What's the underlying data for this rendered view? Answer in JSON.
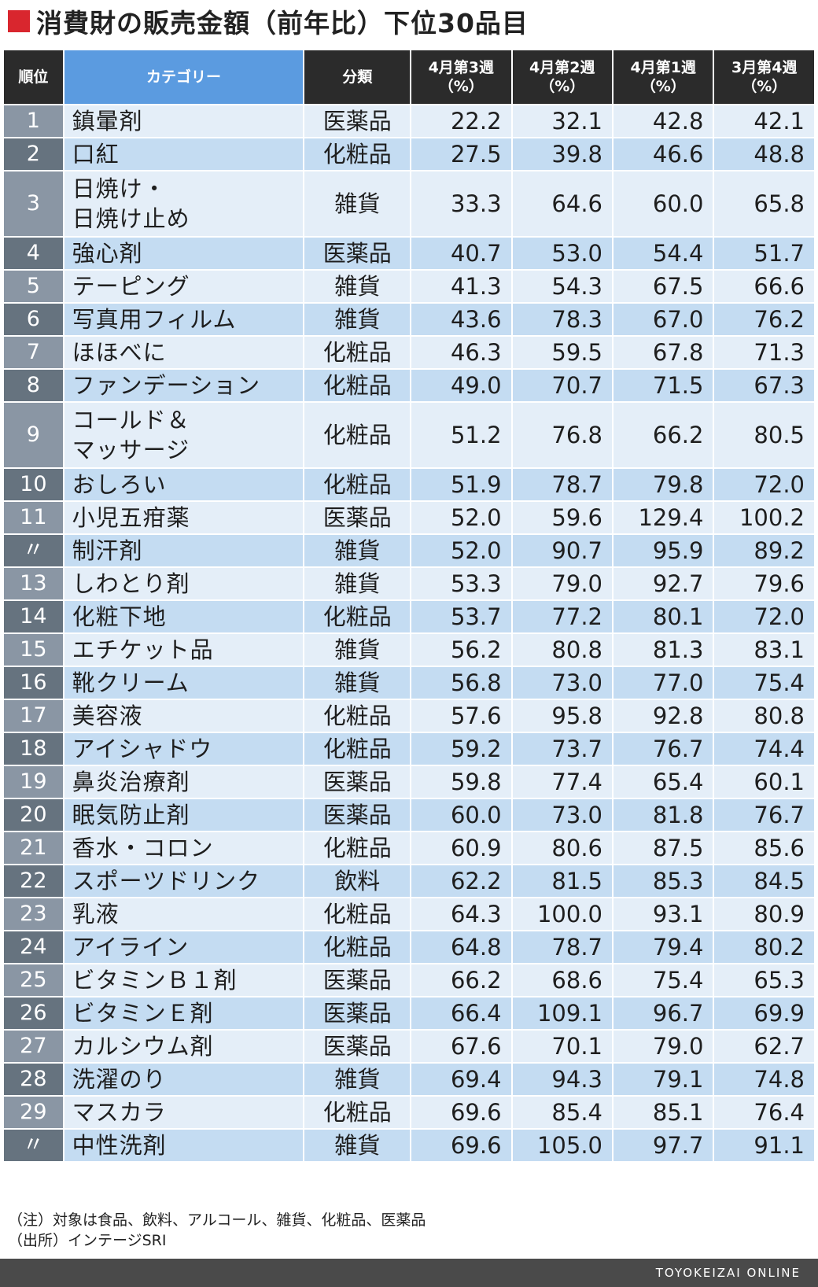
{
  "page": {
    "title": "消費財の販売金額（前年比）下位30品目",
    "notes": [
      "（注）対象は食品、飲料、アルコール、雑貨、化粧品、医薬品",
      "（出所）インテージSRI"
    ],
    "footer": "TOYOKEIZAI ONLINE",
    "accent_color": "#d9262e"
  },
  "chart_data": {
    "type": "table",
    "columns": [
      "順位",
      "カテゴリー",
      "分類",
      "4月第3週\n（%）",
      "4月第2週\n（%）",
      "4月第1週\n（%）",
      "3月第4週\n（%）"
    ],
    "rows": [
      {
        "rank": "1",
        "category": "鎮暈剤",
        "class": "医薬品",
        "values": [
          "22.2",
          "32.1",
          "42.8",
          "42.1"
        ]
      },
      {
        "rank": "2",
        "category": "口紅",
        "class": "化粧品",
        "values": [
          "27.5",
          "39.8",
          "46.6",
          "48.8"
        ]
      },
      {
        "rank": "3",
        "category": "日焼け・\n日焼け止め",
        "class": "雑貨",
        "values": [
          "33.3",
          "64.6",
          "60.0",
          "65.8"
        ]
      },
      {
        "rank": "4",
        "category": "強心剤",
        "class": "医薬品",
        "values": [
          "40.7",
          "53.0",
          "54.4",
          "51.7"
        ]
      },
      {
        "rank": "5",
        "category": "テーピング",
        "class": "雑貨",
        "values": [
          "41.3",
          "54.3",
          "67.5",
          "66.6"
        ]
      },
      {
        "rank": "6",
        "category": "写真用フィルム",
        "class": "雑貨",
        "values": [
          "43.6",
          "78.3",
          "67.0",
          "76.2"
        ]
      },
      {
        "rank": "7",
        "category": "ほほべに",
        "class": "化粧品",
        "values": [
          "46.3",
          "59.5",
          "67.8",
          "71.3"
        ]
      },
      {
        "rank": "8",
        "category": "ファンデーション",
        "class": "化粧品",
        "values": [
          "49.0",
          "70.7",
          "71.5",
          "67.3"
        ]
      },
      {
        "rank": "9",
        "category": "コールド＆\nマッサージ",
        "class": "化粧品",
        "values": [
          "51.2",
          "76.8",
          "66.2",
          "80.5"
        ]
      },
      {
        "rank": "10",
        "category": "おしろい",
        "class": "化粧品",
        "values": [
          "51.9",
          "78.7",
          "79.8",
          "72.0"
        ]
      },
      {
        "rank": "11",
        "category": "小児五疳薬",
        "class": "医薬品",
        "values": [
          "52.0",
          "59.6",
          "129.4",
          "100.2"
        ]
      },
      {
        "rank": "〃",
        "category": "制汗剤",
        "class": "雑貨",
        "values": [
          "52.0",
          "90.7",
          "95.9",
          "89.2"
        ]
      },
      {
        "rank": "13",
        "category": "しわとり剤",
        "class": "雑貨",
        "values": [
          "53.3",
          "79.0",
          "92.7",
          "79.6"
        ]
      },
      {
        "rank": "14",
        "category": "化粧下地",
        "class": "化粧品",
        "values": [
          "53.7",
          "77.2",
          "80.1",
          "72.0"
        ]
      },
      {
        "rank": "15",
        "category": "エチケット品",
        "class": "雑貨",
        "values": [
          "56.2",
          "80.8",
          "81.3",
          "83.1"
        ]
      },
      {
        "rank": "16",
        "category": "靴クリーム",
        "class": "雑貨",
        "values": [
          "56.8",
          "73.0",
          "77.0",
          "75.4"
        ]
      },
      {
        "rank": "17",
        "category": "美容液",
        "class": "化粧品",
        "values": [
          "57.6",
          "95.8",
          "92.8",
          "80.8"
        ]
      },
      {
        "rank": "18",
        "category": "アイシャドウ",
        "class": "化粧品",
        "values": [
          "59.2",
          "73.7",
          "76.7",
          "74.4"
        ]
      },
      {
        "rank": "19",
        "category": "鼻炎治療剤",
        "class": "医薬品",
        "values": [
          "59.8",
          "77.4",
          "65.4",
          "60.1"
        ]
      },
      {
        "rank": "20",
        "category": "眠気防止剤",
        "class": "医薬品",
        "values": [
          "60.0",
          "73.0",
          "81.8",
          "76.7"
        ]
      },
      {
        "rank": "21",
        "category": "香水・コロン",
        "class": "化粧品",
        "values": [
          "60.9",
          "80.6",
          "87.5",
          "85.6"
        ]
      },
      {
        "rank": "22",
        "category": "スポーツドリンク",
        "class": "飲料",
        "values": [
          "62.2",
          "81.5",
          "85.3",
          "84.5"
        ]
      },
      {
        "rank": "23",
        "category": "乳液",
        "class": "化粧品",
        "values": [
          "64.3",
          "100.0",
          "93.1",
          "80.9"
        ]
      },
      {
        "rank": "24",
        "category": "アイライン",
        "class": "化粧品",
        "values": [
          "64.8",
          "78.7",
          "79.4",
          "80.2"
        ]
      },
      {
        "rank": "25",
        "category": "ビタミンＢ１剤",
        "class": "医薬品",
        "values": [
          "66.2",
          "68.6",
          "75.4",
          "65.3"
        ]
      },
      {
        "rank": "26",
        "category": "ビタミンＥ剤",
        "class": "医薬品",
        "values": [
          "66.4",
          "109.1",
          "96.7",
          "69.9"
        ]
      },
      {
        "rank": "27",
        "category": "カルシウム剤",
        "class": "医薬品",
        "values": [
          "67.6",
          "70.1",
          "79.0",
          "62.7"
        ]
      },
      {
        "rank": "28",
        "category": "洗濯のり",
        "class": "雑貨",
        "values": [
          "69.4",
          "94.3",
          "79.1",
          "74.8"
        ]
      },
      {
        "rank": "29",
        "category": "マスカラ",
        "class": "化粧品",
        "values": [
          "69.6",
          "85.4",
          "85.1",
          "76.4"
        ]
      },
      {
        "rank": "〃",
        "category": "中性洗剤",
        "class": "雑貨",
        "values": [
          "69.6",
          "105.0",
          "97.7",
          "91.1"
        ]
      }
    ]
  }
}
